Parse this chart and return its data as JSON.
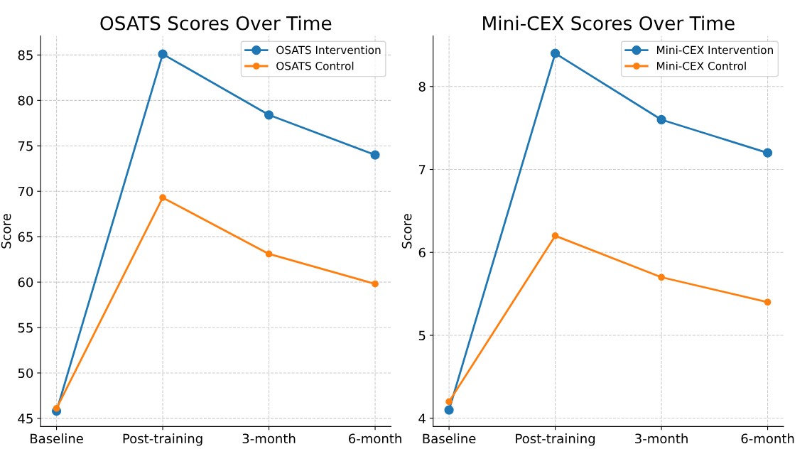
{
  "chart_data": [
    {
      "type": "line",
      "title": "OSATS Scores Over Time",
      "ylabel": "Score",
      "categories": [
        "Baseline",
        "Post-training",
        "3-month",
        "6-month"
      ],
      "series": [
        {
          "name": "OSATS Intervention",
          "color": "#1f77b4",
          "values": [
            45.8,
            85.1,
            78.4,
            74.0
          ]
        },
        {
          "name": "OSATS Control",
          "color": "#ff7f0e",
          "values": [
            46.1,
            69.3,
            63.1,
            59.8
          ]
        }
      ],
      "ylim": [
        44.1,
        87.1
      ],
      "yticks": [
        45,
        50,
        55,
        60,
        65,
        70,
        75,
        80,
        85
      ],
      "grid": true,
      "legend": "top right",
      "marker": "circle",
      "line_style": "solid"
    },
    {
      "type": "line",
      "title": "Mini-CEX Scores Over Time",
      "ylabel": "Score",
      "categories": [
        "Baseline",
        "Post-training",
        "3-month",
        "6-month"
      ],
      "series": [
        {
          "name": "Mini-CEX Intervention",
          "color": "#1f77b4",
          "values": [
            4.1,
            8.4,
            7.6,
            7.2
          ]
        },
        {
          "name": "Mini-CEX Control",
          "color": "#ff7f0e",
          "values": [
            4.2,
            6.2,
            5.7,
            5.4
          ]
        }
      ],
      "ylim": [
        3.9,
        8.61
      ],
      "yticks": [
        4,
        5,
        6,
        7,
        8
      ],
      "grid": true,
      "legend": "top right",
      "marker": "circle",
      "line_style": "solid"
    }
  ]
}
